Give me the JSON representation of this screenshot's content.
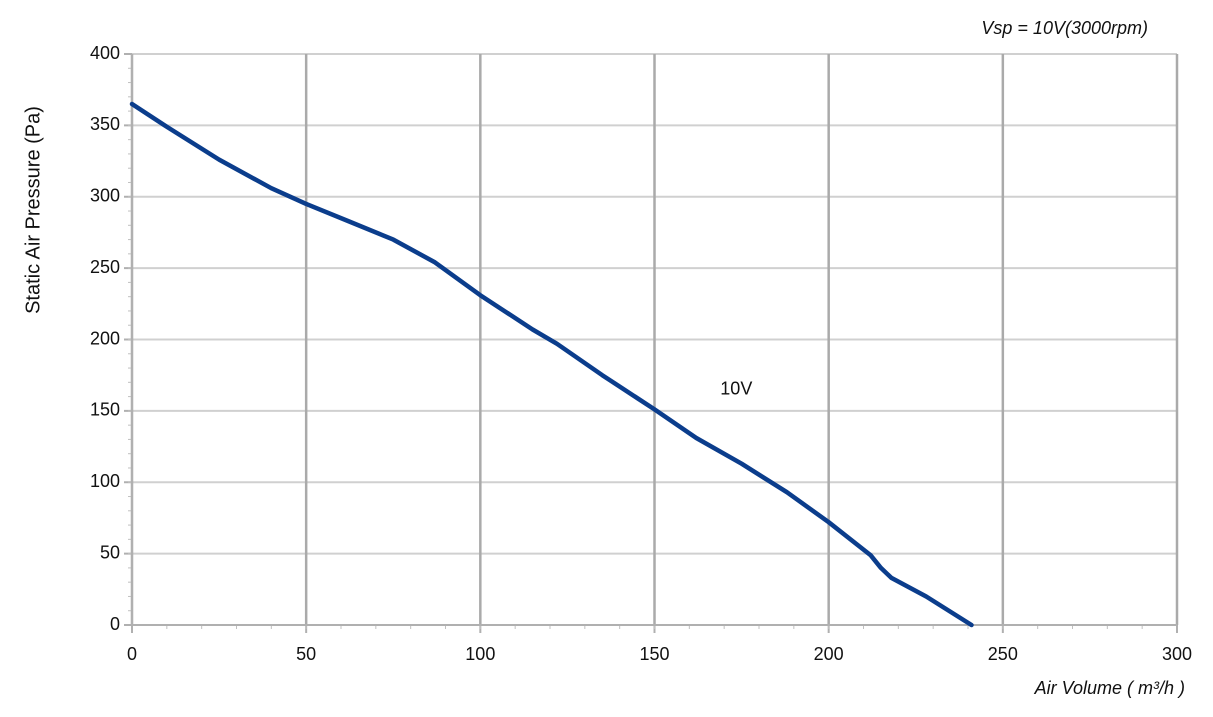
{
  "chart_data": {
    "type": "line",
    "title": "Vsp = 10V(3000rpm)",
    "x_label": "Air Volume ( m³/h )",
    "y_label": "Static Air Pressure  (Pa)",
    "x": [
      0,
      10,
      25,
      40,
      50,
      62,
      75,
      87,
      100,
      115,
      122,
      135,
      150,
      162,
      175,
      188,
      200,
      212,
      215,
      218,
      228,
      241
    ],
    "series": [
      {
        "name": "10V",
        "color": "#0b3d8c",
        "values": [
          365,
          349,
          326,
          306,
          295,
          283,
          270,
          254,
          231,
          207,
          197,
          175,
          151,
          131,
          113,
          93,
          72,
          49,
          40,
          33,
          20,
          0
        ]
      }
    ],
    "xlim": [
      0,
      300
    ],
    "ylim": [
      0,
      400
    ],
    "xticks": [
      0,
      50,
      100,
      150,
      200,
      250,
      300
    ],
    "yticks": [
      0,
      50,
      100,
      150,
      200,
      250,
      300,
      350,
      400
    ],
    "grid": true
  }
}
